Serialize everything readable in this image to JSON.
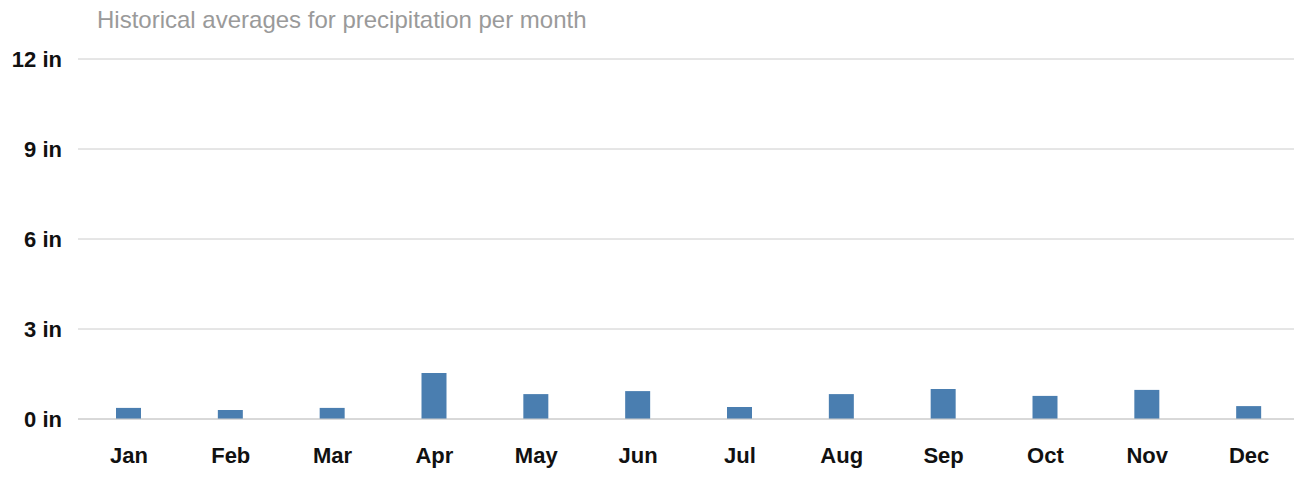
{
  "chart_data": {
    "type": "bar",
    "title": "Historical averages for precipitation per month",
    "categories": [
      "Jan",
      "Feb",
      "Mar",
      "Apr",
      "May",
      "Jun",
      "Jul",
      "Aug",
      "Sep",
      "Oct",
      "Nov",
      "Dec"
    ],
    "values": [
      0.37,
      0.3,
      0.37,
      1.53,
      0.83,
      0.93,
      0.4,
      0.83,
      1.0,
      0.77,
      0.97,
      0.43
    ],
    "color": "#4a7eb0",
    "ylim": [
      0,
      12
    ],
    "yticks": [
      {
        "value": 0,
        "label": "0 in"
      },
      {
        "value": 3,
        "label": "3 in"
      },
      {
        "value": 6,
        "label": "6 in"
      },
      {
        "value": 9,
        "label": "9 in"
      },
      {
        "value": 12,
        "label": "12 in"
      }
    ],
    "grid": true
  }
}
